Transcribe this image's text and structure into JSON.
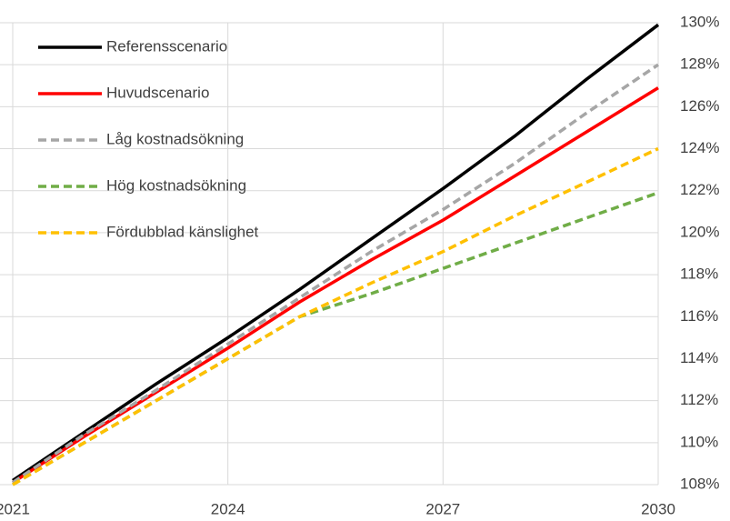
{
  "chart_data": {
    "type": "line",
    "x": [
      2021,
      2022,
      2023,
      2024,
      2025,
      2026,
      2027,
      2028,
      2029,
      2030
    ],
    "xlim": [
      2021,
      2030
    ],
    "xticks": [
      2021,
      2024,
      2027,
      2030
    ],
    "ylim": [
      108,
      130
    ],
    "yticks": [
      {
        "value": 108,
        "label": "108%"
      },
      {
        "value": 110,
        "label": "110%"
      },
      {
        "value": 112,
        "label": "112%"
      },
      {
        "value": 114,
        "label": "114%"
      },
      {
        "value": 116,
        "label": "116%"
      },
      {
        "value": 118,
        "label": "118%"
      },
      {
        "value": 120,
        "label": "120%"
      },
      {
        "value": 122,
        "label": "122%"
      },
      {
        "value": 124,
        "label": "124%"
      },
      {
        "value": 126,
        "label": "126%"
      },
      {
        "value": 128,
        "label": "128%"
      },
      {
        "value": 130,
        "label": "130%"
      }
    ],
    "grid": true,
    "legend": "upper left",
    "y_axis_side": "right",
    "series": [
      {
        "name": "Referensscenario",
        "color": "#000000",
        "dashed": false,
        "values": [
          108.2,
          110.5,
          112.8,
          115.0,
          117.3,
          119.7,
          122.1,
          124.6,
          127.3,
          129.9
        ]
      },
      {
        "name": "Huvudscenario",
        "color": "#ff0000",
        "dashed": false,
        "values": [
          108.1,
          110.3,
          112.4,
          114.5,
          116.7,
          118.7,
          120.6,
          122.7,
          124.8,
          126.9
        ]
      },
      {
        "name": "Låg kostnadsökning",
        "color": "#a6a6a6",
        "dashed": true,
        "values": [
          108.1,
          110.4,
          112.5,
          114.7,
          116.9,
          119.1,
          121.1,
          123.3,
          125.7,
          128.0
        ]
      },
      {
        "name": "Hög kostnadsökning",
        "color": "#70ad47",
        "dashed": true,
        "values": [
          108.0,
          110.0,
          112.0,
          114.0,
          116.0,
          117.1,
          118.3,
          119.5,
          120.7,
          121.9
        ]
      },
      {
        "name": "Fördubblad känslighet",
        "color": "#ffc000",
        "dashed": true,
        "values": [
          108.0,
          110.0,
          112.0,
          114.0,
          116.0,
          117.6,
          119.1,
          120.8,
          122.4,
          124.0
        ]
      }
    ]
  }
}
